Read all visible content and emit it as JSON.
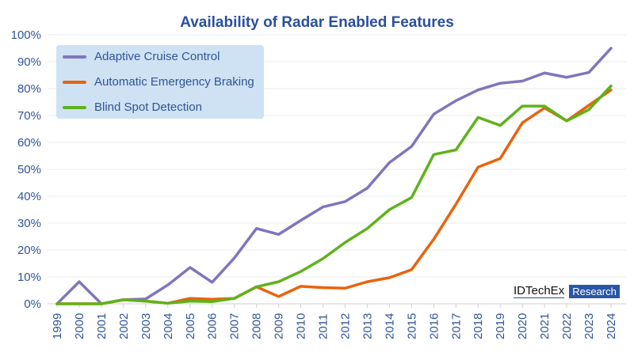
{
  "chart_data": {
    "type": "line",
    "title": "Availability of Radar Enabled Features",
    "xlabel": "",
    "ylabel": "",
    "categories": [
      "1999",
      "2000",
      "2001",
      "2002",
      "2003",
      "2004",
      "2005",
      "2006",
      "2007",
      "2008",
      "2009",
      "2010",
      "2011",
      "2012",
      "2013",
      "2014",
      "2015",
      "2016",
      "2017",
      "2018",
      "2019",
      "2020",
      "2021",
      "2022",
      "2023",
      "2024"
    ],
    "ylim": [
      0,
      100
    ],
    "yticks": [
      "0%",
      "10%",
      "20%",
      "30%",
      "40%",
      "50%",
      "60%",
      "70%",
      "80%",
      "90%",
      "100%"
    ],
    "grid": true,
    "legend_position": "top-left",
    "series": [
      {
        "name": "Adaptive Cruise Control",
        "color": "#8075bd",
        "values": [
          0,
          8.2,
          0,
          1.5,
          1.8,
          7,
          13.5,
          8,
          17,
          28,
          25.8,
          31,
          36,
          38,
          43,
          52.5,
          58.5,
          70.5,
          75.5,
          79.5,
          82,
          82.8,
          85.8,
          84.2,
          86,
          95
        ]
      },
      {
        "name": "Automatic Emergency Braking",
        "color": "#e8640c",
        "values": [
          0,
          0,
          0,
          1.5,
          1.0,
          0.2,
          2,
          1.7,
          2,
          6.3,
          2.7,
          6.5,
          6,
          5.8,
          8.2,
          9.7,
          12.7,
          24,
          37,
          50.8,
          54,
          67.3,
          72.8,
          68,
          73.8,
          79.5
        ]
      },
      {
        "name": "Blind Spot Detection",
        "color": "#5fb21c",
        "values": [
          0,
          0,
          0,
          1.5,
          1.0,
          0.2,
          1,
          0.8,
          2,
          6.3,
          8.2,
          12,
          16.8,
          22.8,
          28,
          35,
          39.5,
          55.5,
          57.2,
          69.3,
          66.3,
          73.5,
          73.5,
          68,
          72.2,
          81
        ]
      }
    ]
  },
  "branding": {
    "name": "IDTechEx",
    "tag": "Research"
  }
}
